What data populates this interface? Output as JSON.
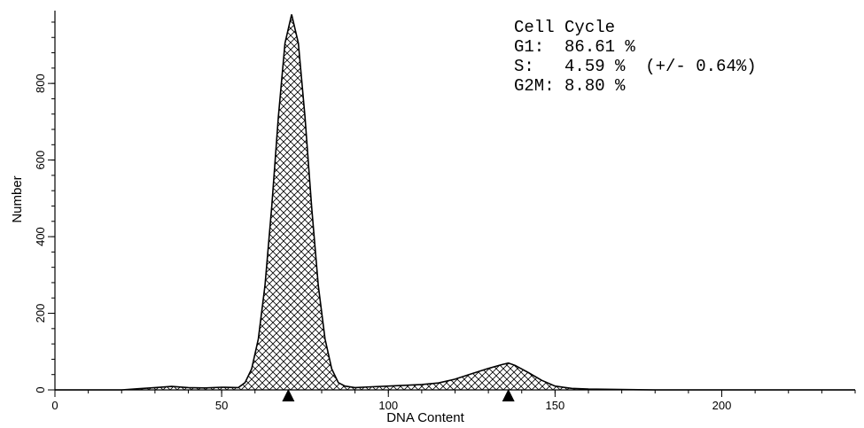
{
  "chart_data": {
    "type": "area",
    "x_label": "DNA Content",
    "y_label": "Number",
    "annotations": [
      "Cell Cycle",
      "G1:  86.61 %",
      "S:   4.59 %  (+/- 0.64%)",
      "G2M: 8.80 %"
    ],
    "x": [
      0,
      10,
      20,
      25,
      30,
      35,
      40,
      45,
      50,
      55,
      57,
      59,
      61,
      63,
      65,
      67,
      69,
      71,
      73,
      75,
      77,
      79,
      81,
      83,
      85,
      87,
      90,
      95,
      100,
      105,
      110,
      115,
      120,
      125,
      130,
      134,
      136,
      138,
      142,
      146,
      150,
      155,
      160,
      170,
      180,
      200,
      220,
      240
    ],
    "values": [
      0,
      0,
      0,
      3,
      6,
      9,
      6,
      5,
      7,
      6,
      19,
      55,
      133,
      272,
      477,
      712,
      905,
      980,
      905,
      712,
      477,
      272,
      133,
      55,
      19,
      10,
      6,
      8,
      10,
      12,
      14,
      18,
      28,
      42,
      56,
      66,
      70,
      64,
      45,
      25,
      10,
      4,
      2,
      1,
      0,
      0,
      0,
      0
    ],
    "color": "#000000",
    "markers": [
      70,
      136
    ],
    "xlim": [
      0,
      240
    ],
    "xticks": [
      0,
      50,
      100,
      150,
      200
    ],
    "ylim": [
      0,
      990
    ],
    "yticks": [
      0,
      200,
      400,
      600,
      800
    ],
    "grid": false
  }
}
